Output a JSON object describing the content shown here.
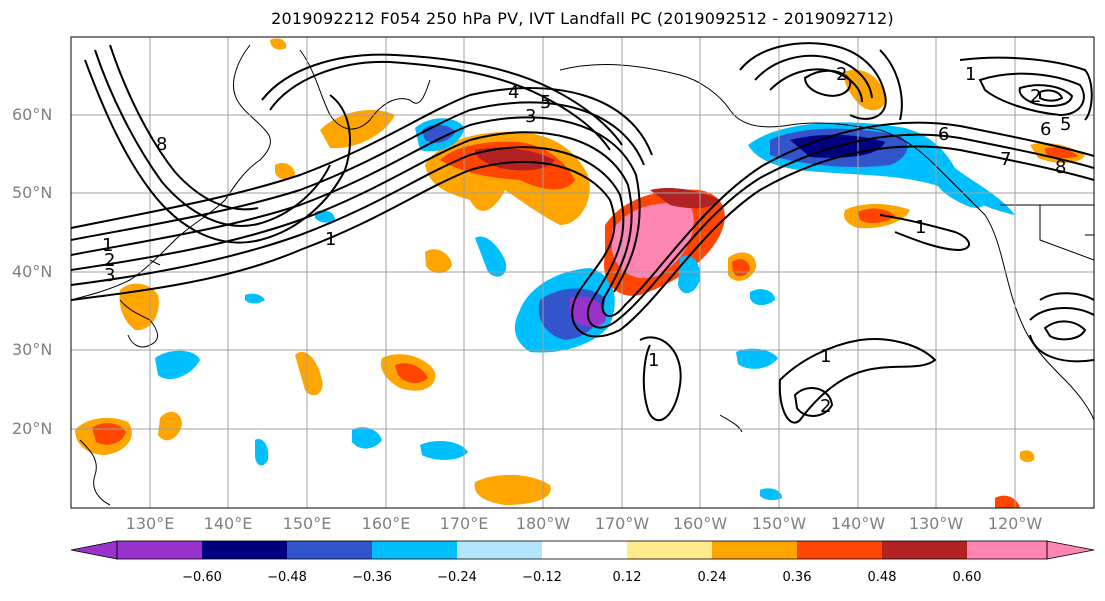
{
  "title": "2019092212 F054 250 hPa PV, IVT Landfall PC (2019092512 - 2019092712)",
  "lat_labels": [
    "60°N",
    "50°N",
    "40°N",
    "30°N",
    "20°N"
  ],
  "lon_labels": [
    "130°E",
    "140°E",
    "150°E",
    "160°E",
    "170°E",
    "180°W",
    "170°W",
    "160°W",
    "150°W",
    "140°W",
    "130°W",
    "120°W"
  ],
  "colorbar": {
    "ticks": [
      "−0.60",
      "−0.48",
      "−0.36",
      "−0.24",
      "−0.12",
      "0.12",
      "0.24",
      "0.36",
      "0.48",
      "0.60"
    ],
    "colors": [
      "#9933cc",
      "#000080",
      "#3355cc",
      "#00bfff",
      "#b3e5fc",
      "#ffffff",
      "#ffeb8a",
      "#ffa500",
      "#ff4500",
      "#b22222",
      "#ff85b3"
    ]
  },
  "contour_labels": [
    "1",
    "2",
    "3",
    "8",
    "4",
    "5",
    "3",
    "1",
    "1",
    "2",
    "1",
    "2",
    "6",
    "5",
    "7",
    "8",
    "6",
    "2",
    "1",
    "1"
  ],
  "palette": {
    "land_line": "#000000",
    "grid": "#a0a0a0",
    "contour": "#000000"
  }
}
